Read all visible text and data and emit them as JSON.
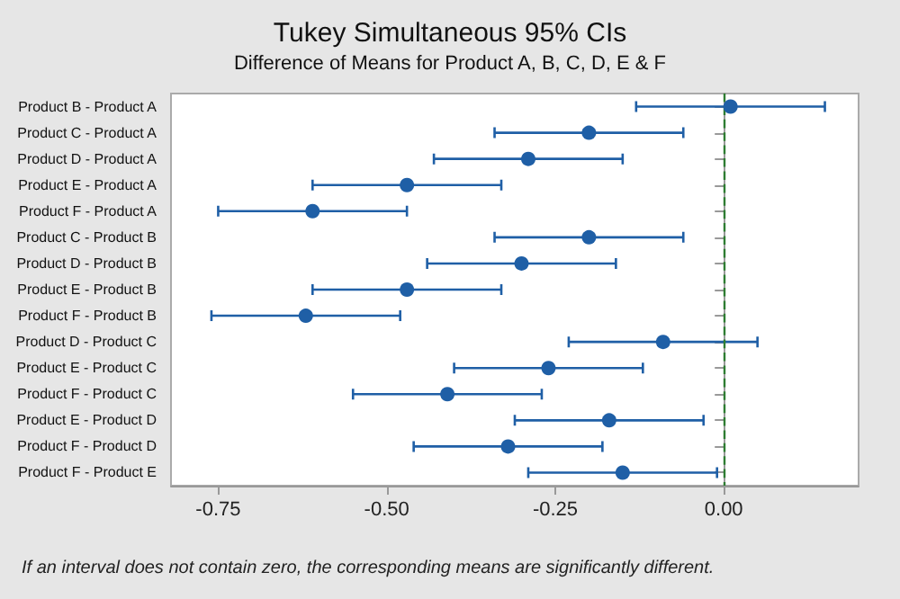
{
  "chart_data": {
    "type": "scatter",
    "orientation": "horizontal",
    "title": "Tukey Simultaneous 95% CIs",
    "subtitle": "Difference of Means for Product A, B, C, D, E & F",
    "categories": [
      "Product B - Product A",
      "Product C - Product A",
      "Product D - Product A",
      "Product E - Product A",
      "Product F - Product A",
      "Product C - Product B",
      "Product D - Product B",
      "Product E - Product B",
      "Product F - Product B",
      "Product D - Product C",
      "Product E - Product C",
      "Product F - Product C",
      "Product E - Product D",
      "Product F - Product D",
      "Product F - Product E"
    ],
    "values": [
      0.01,
      -0.2,
      -0.29,
      -0.47,
      -0.61,
      -0.2,
      -0.3,
      -0.47,
      -0.62,
      -0.09,
      -0.26,
      -0.41,
      -0.17,
      -0.32,
      -0.15
    ],
    "errors": [
      0.14,
      0.14,
      0.14,
      0.14,
      0.14,
      0.14,
      0.14,
      0.14,
      0.14,
      0.14,
      0.14,
      0.14,
      0.14,
      0.14,
      0.14
    ],
    "color": "#1f5fa6",
    "marker": "circle",
    "xlim": [
      -0.82,
      0.2
    ],
    "xticks": [
      {
        "value": -0.75,
        "label": "-0.75"
      },
      {
        "value": -0.5,
        "label": "-0.50"
      },
      {
        "value": -0.25,
        "label": "-0.25"
      },
      {
        "value": 0,
        "label": "0.00"
      }
    ],
    "ref_lines": [
      {
        "axis": "x",
        "value": 0,
        "color": "#2e7d32",
        "line_style": "dashed"
      }
    ],
    "annotations": [
      "If an interval does not contain zero, the corresponding means are significantly different."
    ]
  }
}
